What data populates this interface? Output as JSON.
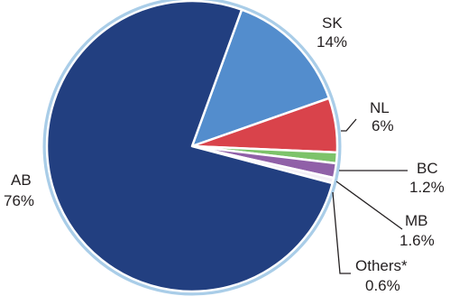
{
  "chart_data": {
    "type": "pie",
    "slices": [
      {
        "category": "SK",
        "value": 14,
        "value_label": "14%",
        "color": "#538dcd"
      },
      {
        "category": "NL",
        "value": 6,
        "value_label": "6%",
        "color": "#d9434b"
      },
      {
        "category": "BC",
        "value": 1.2,
        "value_label": "1.2%",
        "color": "#7dc36a"
      },
      {
        "category": "MB",
        "value": 1.6,
        "value_label": "1.6%",
        "color": "#9060a8"
      },
      {
        "category": "Others*",
        "value": 0.6,
        "value_label": "0.6%",
        "color": "#f3eef6"
      },
      {
        "category": "AB",
        "value": 76,
        "value_label": "76%",
        "color": "#223f80"
      }
    ],
    "title": "",
    "start_angle_deg": 20,
    "direction": "clockwise",
    "border_color": "#a9cde8"
  }
}
